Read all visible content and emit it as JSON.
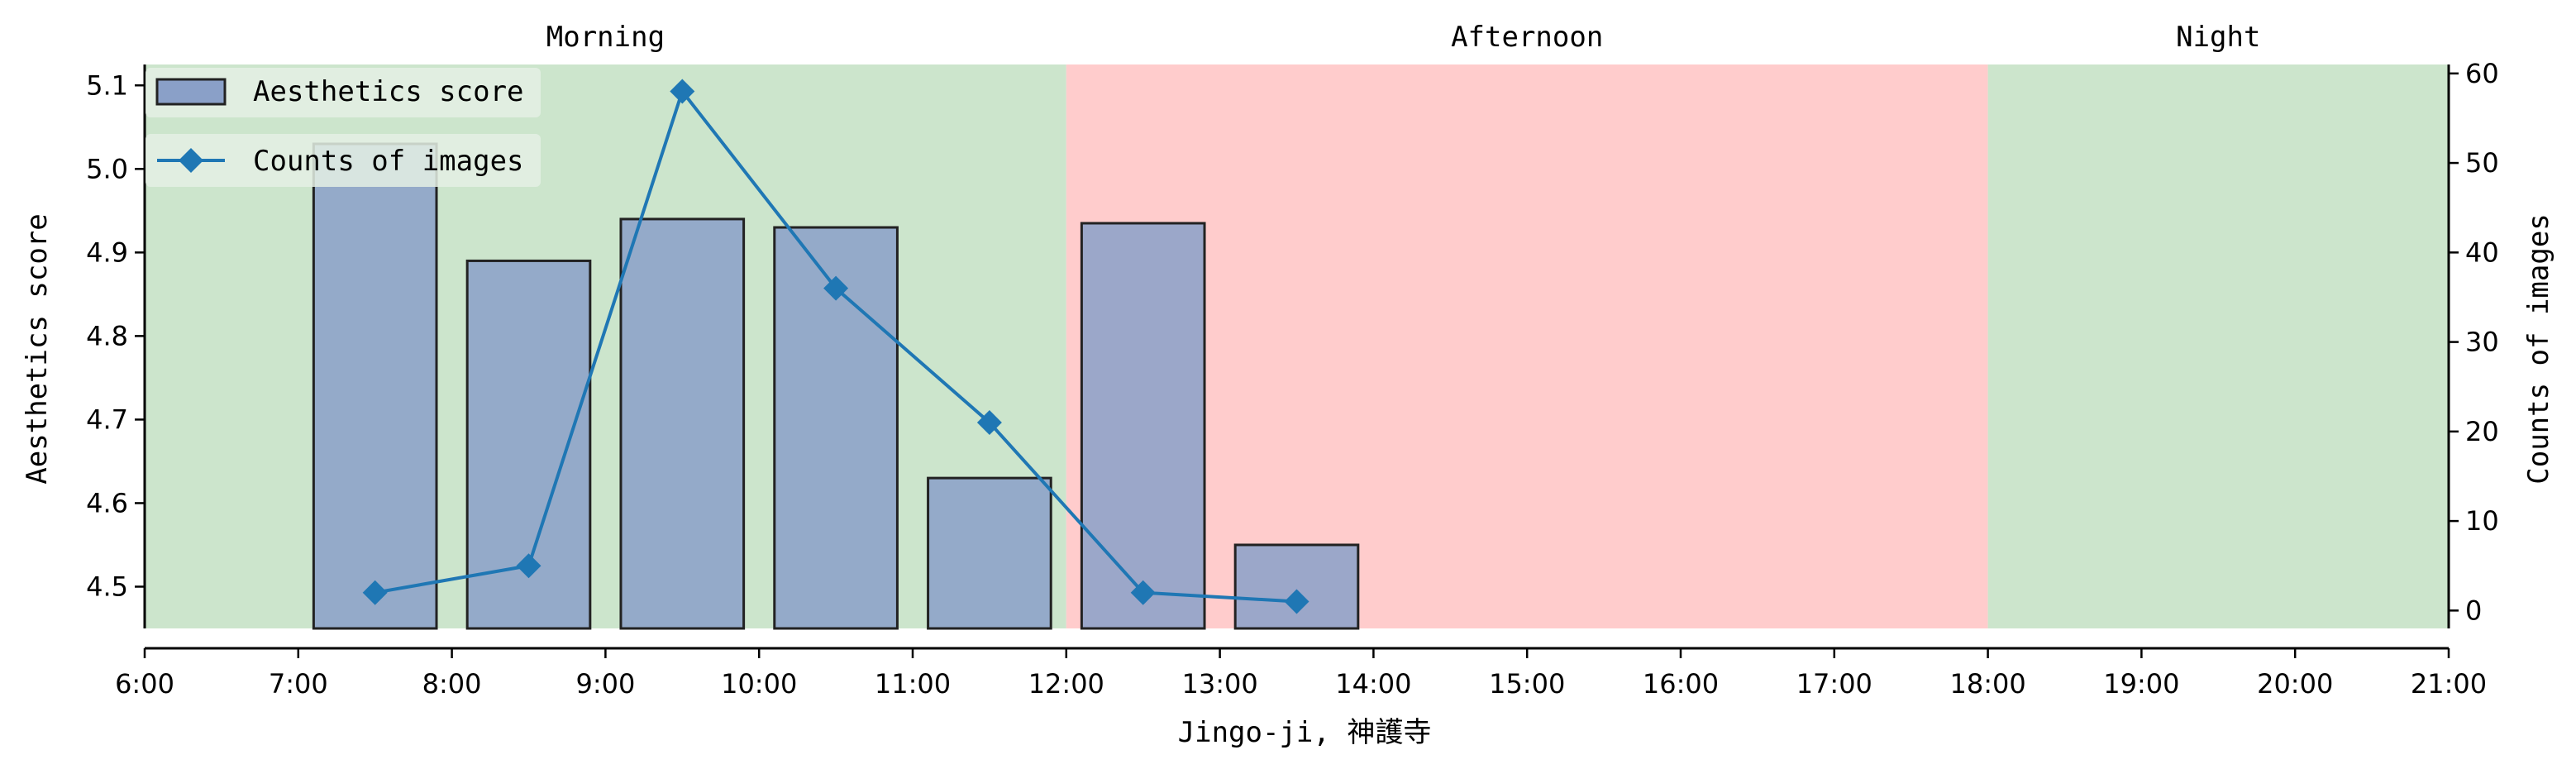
{
  "chart_data": {
    "type": "bar",
    "xlabel": "Jingo-ji, 神護寺",
    "ylabel": "Aesthetics score",
    "y2label": "Counts of images",
    "xlim": [
      "6:00",
      "21:00"
    ],
    "ylim": [
      4.45,
      5.125
    ],
    "y2lim": [
      -2,
      61
    ],
    "x_ticks": [
      "6:00",
      "7:00",
      "8:00",
      "9:00",
      "10:00",
      "11:00",
      "12:00",
      "13:00",
      "14:00",
      "15:00",
      "16:00",
      "17:00",
      "18:00",
      "19:00",
      "20:00",
      "21:00"
    ],
    "y_ticks": [
      "4.5",
      "4.6",
      "4.7",
      "4.8",
      "4.9",
      "5.0",
      "5.1"
    ],
    "y2_ticks": [
      "0",
      "10",
      "20",
      "30",
      "40",
      "50",
      "60"
    ],
    "periods": [
      {
        "label": "Morning",
        "start_hour": 6,
        "end_hour": 12,
        "color": "#cce5cc"
      },
      {
        "label": "Afternoon",
        "start_hour": 12,
        "end_hour": 18,
        "color": "#ffcccc"
      },
      {
        "label": "Night",
        "start_hour": 18,
        "end_hour": 21,
        "color": "#cce5cc"
      }
    ],
    "series": [
      {
        "name": "Aesthetics score",
        "kind": "bar",
        "axis": "left",
        "color": "#8aa0c8",
        "x_hours": [
          7.5,
          8.5,
          9.5,
          10.5,
          11.5,
          12.5,
          13.5
        ],
        "values": [
          5.03,
          4.89,
          4.94,
          4.93,
          4.63,
          4.935,
          4.55
        ]
      },
      {
        "name": "Counts of images",
        "kind": "line",
        "axis": "right",
        "color": "#1f77b4",
        "marker": "diamond",
        "x_hours": [
          7.5,
          8.5,
          9.5,
          10.5,
          11.5,
          12.5,
          13.5
        ],
        "values": [
          2,
          5,
          58,
          36,
          21,
          2,
          1
        ]
      }
    ],
    "legend_position": "upper-left",
    "grid": false
  }
}
